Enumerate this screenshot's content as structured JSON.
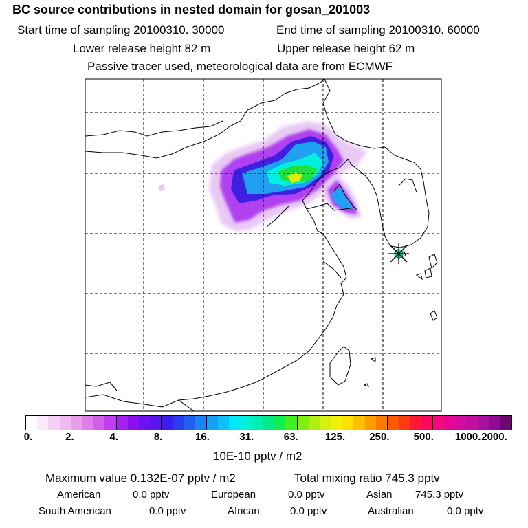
{
  "title": "BC  source contributions in nested domain for gosan_201003",
  "sampling": {
    "start": "Start time of sampling 20100310. 30000",
    "end": "End time of sampling 20100310. 60000"
  },
  "release": {
    "lower": "Lower release height   82 m",
    "upper": "Upper release height   62 m"
  },
  "note": "Passive tracer used, meteorological data are from ECMWF",
  "colorbar": {
    "ticks": [
      "0.",
      "2.",
      "4.",
      "8.",
      "16.",
      "31.",
      "63.",
      "125.",
      "250.",
      "500.",
      "1000.",
      "2000."
    ],
    "unit_label": "10E-10 pptv / m2",
    "colors": [
      "#ffffff",
      "#fbe9fb",
      "#f5d2f5",
      "#eebaf0",
      "#e79fea",
      "#de7ee6",
      "#d060ea",
      "#bf3ef0",
      "#a41ff0",
      "#8a10f0",
      "#6f10f2",
      "#5a14f2",
      "#3d1cf0",
      "#2a3cf0",
      "#2060f0",
      "#1a84f5",
      "#14a2f8",
      "#10c0fa",
      "#00e8f5",
      "#00f0d8",
      "#00eeb0",
      "#00ea88",
      "#10ee50",
      "#40f020",
      "#80f010",
      "#b0f010",
      "#d8f010",
      "#f2f008",
      "#ffe000",
      "#ffc000",
      "#ff9c00",
      "#ff7800",
      "#ff5a00",
      "#ff3a10",
      "#ff1838",
      "#ff0860",
      "#f50880",
      "#e60892",
      "#d40ca0",
      "#c010a4",
      "#a810a0",
      "#900c98",
      "#6c0870"
    ]
  },
  "stats": {
    "max": "Maximum value  0.132E-07 pptv / m2",
    "total": "Total mixing ratio       745.3 pptv",
    "american": "American",
    "american_val": "0.0 pptv",
    "european": "European",
    "european_val": "0.0 pptv",
    "asian": "Asian",
    "asian_val": "745.3 pptv",
    "south_american": "South American",
    "south_american_val": "0.0 pptv",
    "african": "African",
    "african_val": "0.0 pptv",
    "australian": "Australian",
    "australian_val": "0.0 pptv"
  },
  "map": {
    "receptor": "gosan",
    "plume_colors": {
      "low": "#e8c8f4",
      "mid": "#b040f0",
      "dark": "#4020e0",
      "blue": "#20a0f0",
      "cyan": "#00f0e0",
      "green": "#20e040",
      "yellow": "#d8f010"
    }
  }
}
